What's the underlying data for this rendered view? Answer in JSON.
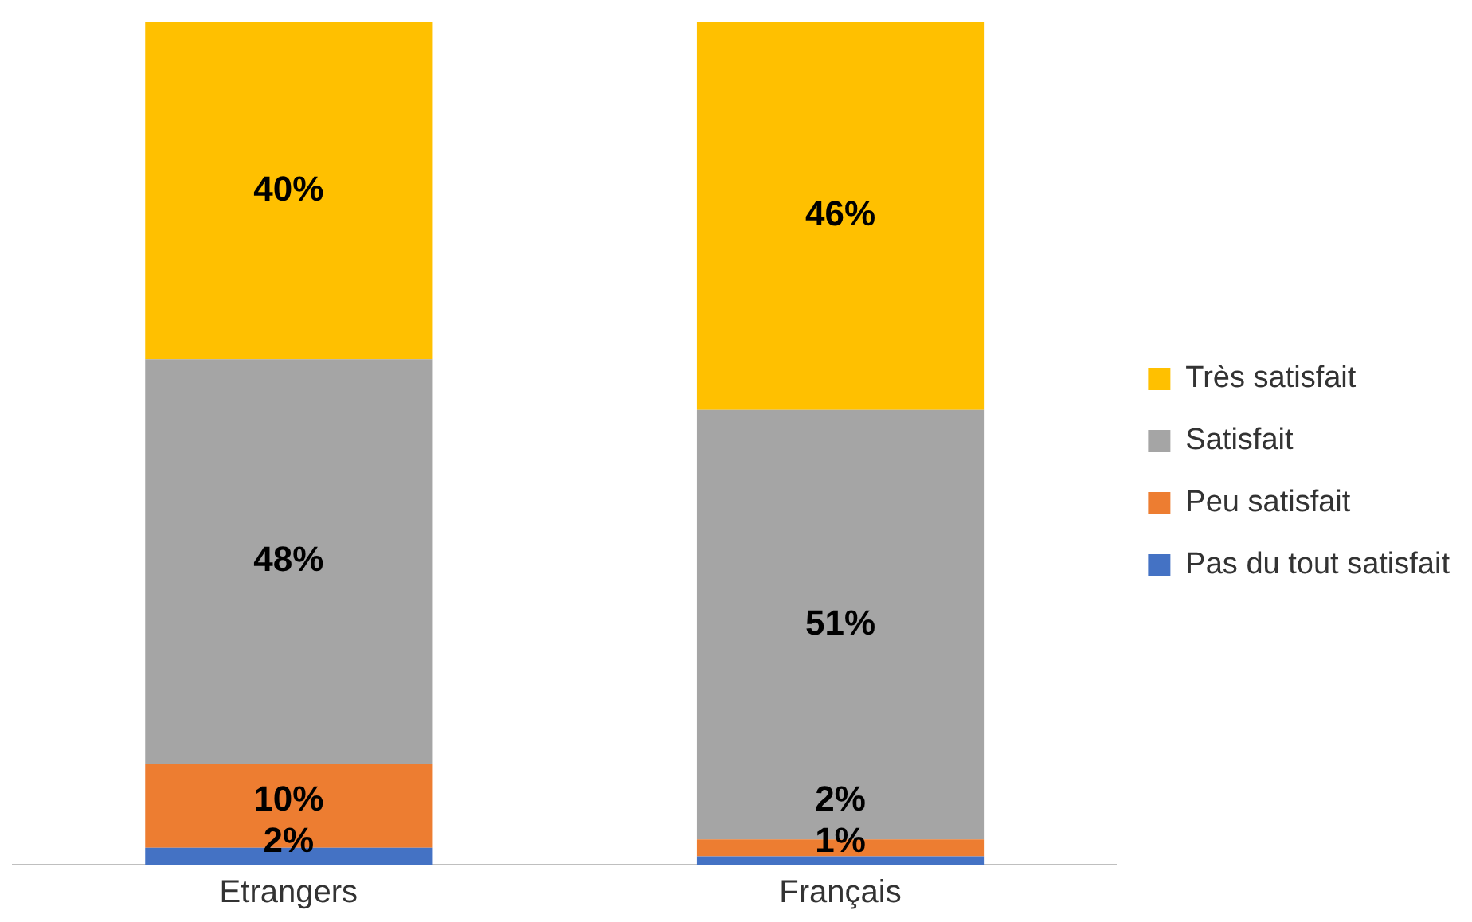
{
  "chart_data": {
    "type": "bar",
    "stacked": true,
    "categories": [
      "Etrangers",
      "Français"
    ],
    "legend": "right",
    "grid": false,
    "series": [
      {
        "name": "Pas du tout satisfait",
        "color": "#4472c4",
        "values": [
          2,
          1
        ],
        "value_labels": [
          "2%",
          "1%"
        ]
      },
      {
        "name": "Peu satisfait",
        "color": "#ed7d31",
        "values": [
          10,
          2
        ],
        "value_labels": [
          "10%",
          "2%"
        ]
      },
      {
        "name": "Satisfait",
        "color": "#a5a5a5",
        "values": [
          48,
          51
        ],
        "value_labels": [
          "48%",
          "51%"
        ]
      },
      {
        "name": "Très satisfait",
        "color": "#ffc000",
        "values": [
          40,
          46
        ],
        "value_labels": [
          "40%",
          "46%"
        ]
      }
    ]
  }
}
